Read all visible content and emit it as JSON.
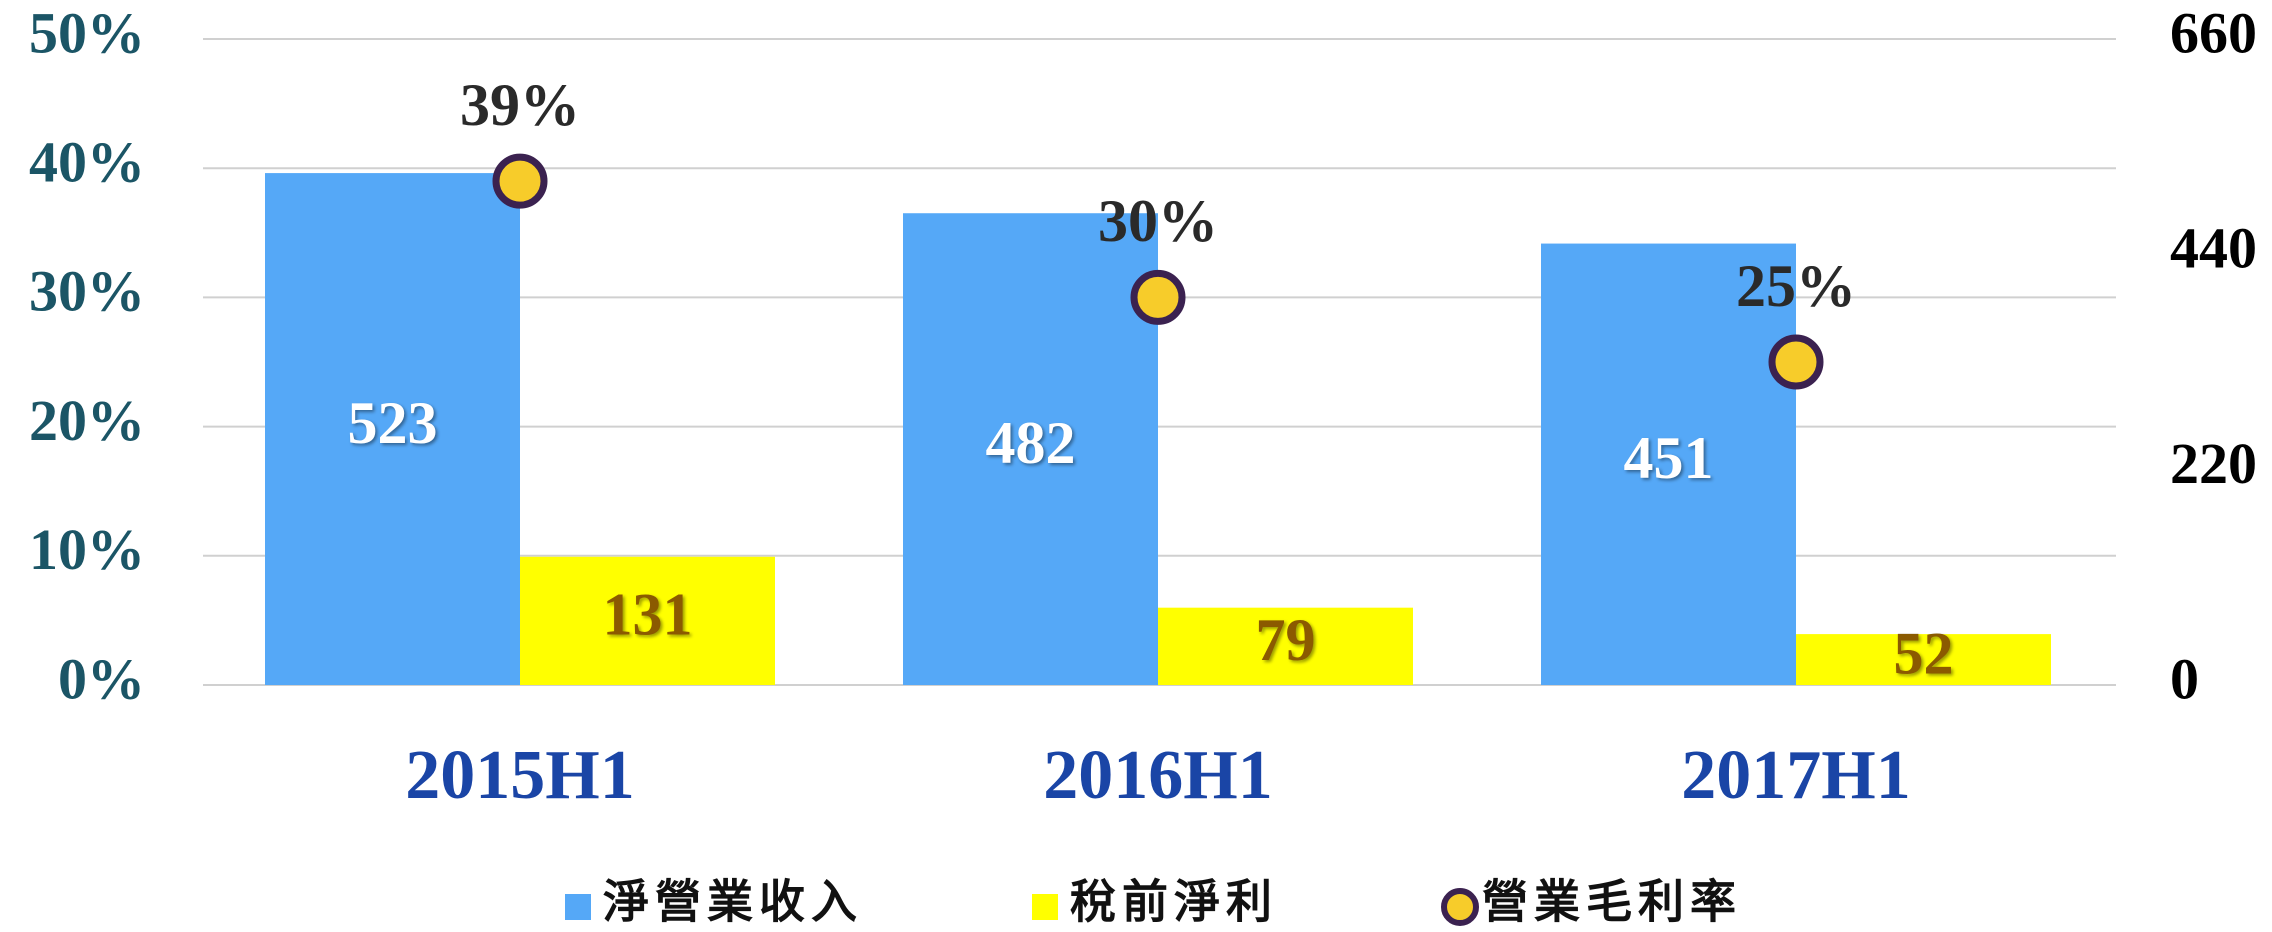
{
  "chart_data": {
    "type": "bar",
    "categories": [
      "2015H1",
      "2016H1",
      "2017H1"
    ],
    "series": [
      {
        "name": "淨營業收入",
        "color": "#55a8f7",
        "values": [
          523,
          482,
          451
        ],
        "axis": "y2",
        "label_color": "#ffffff"
      },
      {
        "name": "稅前淨利",
        "color": "#ffff00",
        "values": [
          131,
          79,
          52
        ],
        "axis": "y2",
        "label_color": "#8b5a00"
      },
      {
        "name": "營業毛利率",
        "type": "scatter",
        "color": "#f7cc2a",
        "edge_color": "#3b2250",
        "values": [
          39,
          30,
          25
        ],
        "value_labels": [
          "39%",
          "30%",
          "25%"
        ],
        "axis": "y",
        "label_color": "#2a2a2a"
      }
    ],
    "ylim": [
      0,
      50
    ],
    "yticks": [
      {
        "value": 0,
        "label": "0%"
      },
      {
        "value": 10,
        "label": "10%"
      },
      {
        "value": 20,
        "label": "20%"
      },
      {
        "value": 30,
        "label": "30%"
      },
      {
        "value": 40,
        "label": "40%"
      },
      {
        "value": 50,
        "label": "50%"
      }
    ],
    "y2lim": [
      0,
      660
    ],
    "y2ticks": [
      0,
      220,
      440,
      660
    ],
    "grid": true
  }
}
